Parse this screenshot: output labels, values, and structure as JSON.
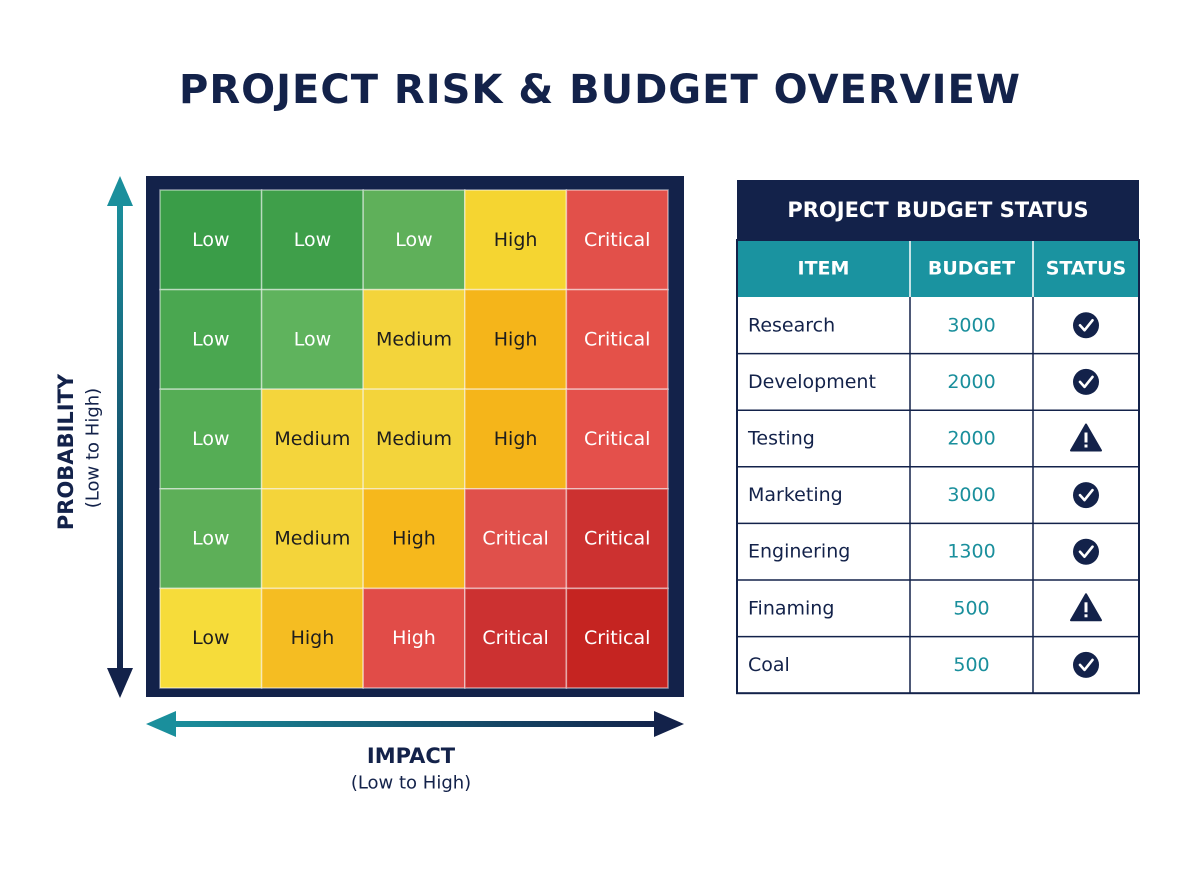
{
  "title": "PROJECT RISK & BUDGET OVERVIEW",
  "matrix": {
    "y_axis_label": "PROBABILITY",
    "y_axis_sublabel": "(Low to High)",
    "x_axis_label": "IMPACT",
    "x_axis_sublabel": "(Low to High)",
    "rows": [
      [
        "Low",
        "Low",
        "Low",
        "High",
        "Critical"
      ],
      [
        "Low",
        "Low",
        "Medium",
        "High",
        "Critical"
      ],
      [
        "Low",
        "Medium",
        "Medium",
        "High",
        "Critical"
      ],
      [
        "Low",
        "Medium",
        "High",
        "Critical",
        "Critical"
      ],
      [
        "Low",
        "High",
        "High",
        "Critical",
        "Critical"
      ]
    ]
  },
  "table": {
    "title": "PROJECT BUDGET STATUS",
    "columns": [
      "ITEM",
      "BUDGET",
      "STATUS"
    ],
    "rows": [
      [
        "Research",
        3000
      ],
      [
        "Development",
        2000
      ],
      [
        "Testing",
        2000
      ],
      [
        "Marketing",
        3000
      ],
      [
        "Enginering",
        1300
      ],
      [
        "Finaming",
        500
      ],
      [
        "Coal",
        500
      ]
    ]
  }
}
